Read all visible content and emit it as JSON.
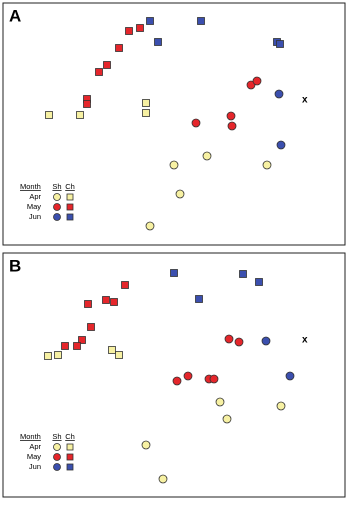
{
  "chart_data": [
    {
      "type": "scatter",
      "panel_label": "A",
      "annotation": "x",
      "annotation_x": 302,
      "annotation_y": 97,
      "legend": {
        "title": "Month",
        "columns": [
          "Sh",
          "Ch"
        ]
      },
      "series": [
        {
          "name": "Apr",
          "color": "#f7f1a3",
          "sh_x": [
            171,
            204,
            264,
            177,
            147
          ],
          "sh_y": [
            162,
            153,
            162,
            191,
            223
          ],
          "ch_x": [
            46,
            77,
            143,
            143
          ],
          "ch_y": [
            112,
            112,
            100,
            110
          ]
        },
        {
          "name": "May",
          "color": "#e5262b",
          "sh_x": [
            248,
            254,
            193,
            228,
            229
          ],
          "sh_y": [
            82,
            78,
            120,
            113,
            123
          ],
          "ch_x": [
            126,
            137,
            116,
            104,
            96,
            84,
            84
          ],
          "ch_y": [
            28,
            25,
            45,
            62,
            69,
            96,
            101
          ]
        },
        {
          "name": "Jun",
          "color": "#3b4fae",
          "sh_x": [
            276,
            278
          ],
          "sh_y": [
            91,
            142
          ],
          "ch_x": [
            147,
            198,
            155,
            274,
            277
          ],
          "ch_y": [
            18,
            18,
            39,
            39,
            41
          ]
        }
      ]
    },
    {
      "type": "scatter",
      "panel_label": "B",
      "annotation": "x",
      "annotation_x": 302,
      "annotation_y": 87,
      "legend": {
        "title": "Month",
        "columns": [
          "Sh",
          "Ch"
        ]
      },
      "series": [
        {
          "name": "Apr",
          "color": "#f7f1a3",
          "sh_x": [
            217,
            224,
            278,
            143,
            160
          ],
          "sh_y": [
            149,
            166,
            153,
            192,
            226
          ],
          "ch_x": [
            45,
            55,
            109,
            116
          ],
          "ch_y": [
            103,
            102,
            97,
            102
          ]
        },
        {
          "name": "May",
          "color": "#e5262b",
          "sh_x": [
            226,
            236,
            185,
            174,
            206,
            211
          ],
          "sh_y": [
            86,
            89,
            123,
            128,
            126,
            126
          ],
          "ch_x": [
            122,
            103,
            111,
            85,
            88,
            79,
            62,
            74
          ],
          "ch_y": [
            32,
            47,
            49,
            51,
            74,
            87,
            93,
            93
          ]
        },
        {
          "name": "Jun",
          "color": "#3b4fae",
          "sh_x": [
            263,
            287
          ],
          "sh_y": [
            88,
            123
          ],
          "ch_x": [
            171,
            240,
            256,
            196
          ],
          "ch_y": [
            20,
            21,
            29,
            46
          ]
        }
      ]
    }
  ]
}
